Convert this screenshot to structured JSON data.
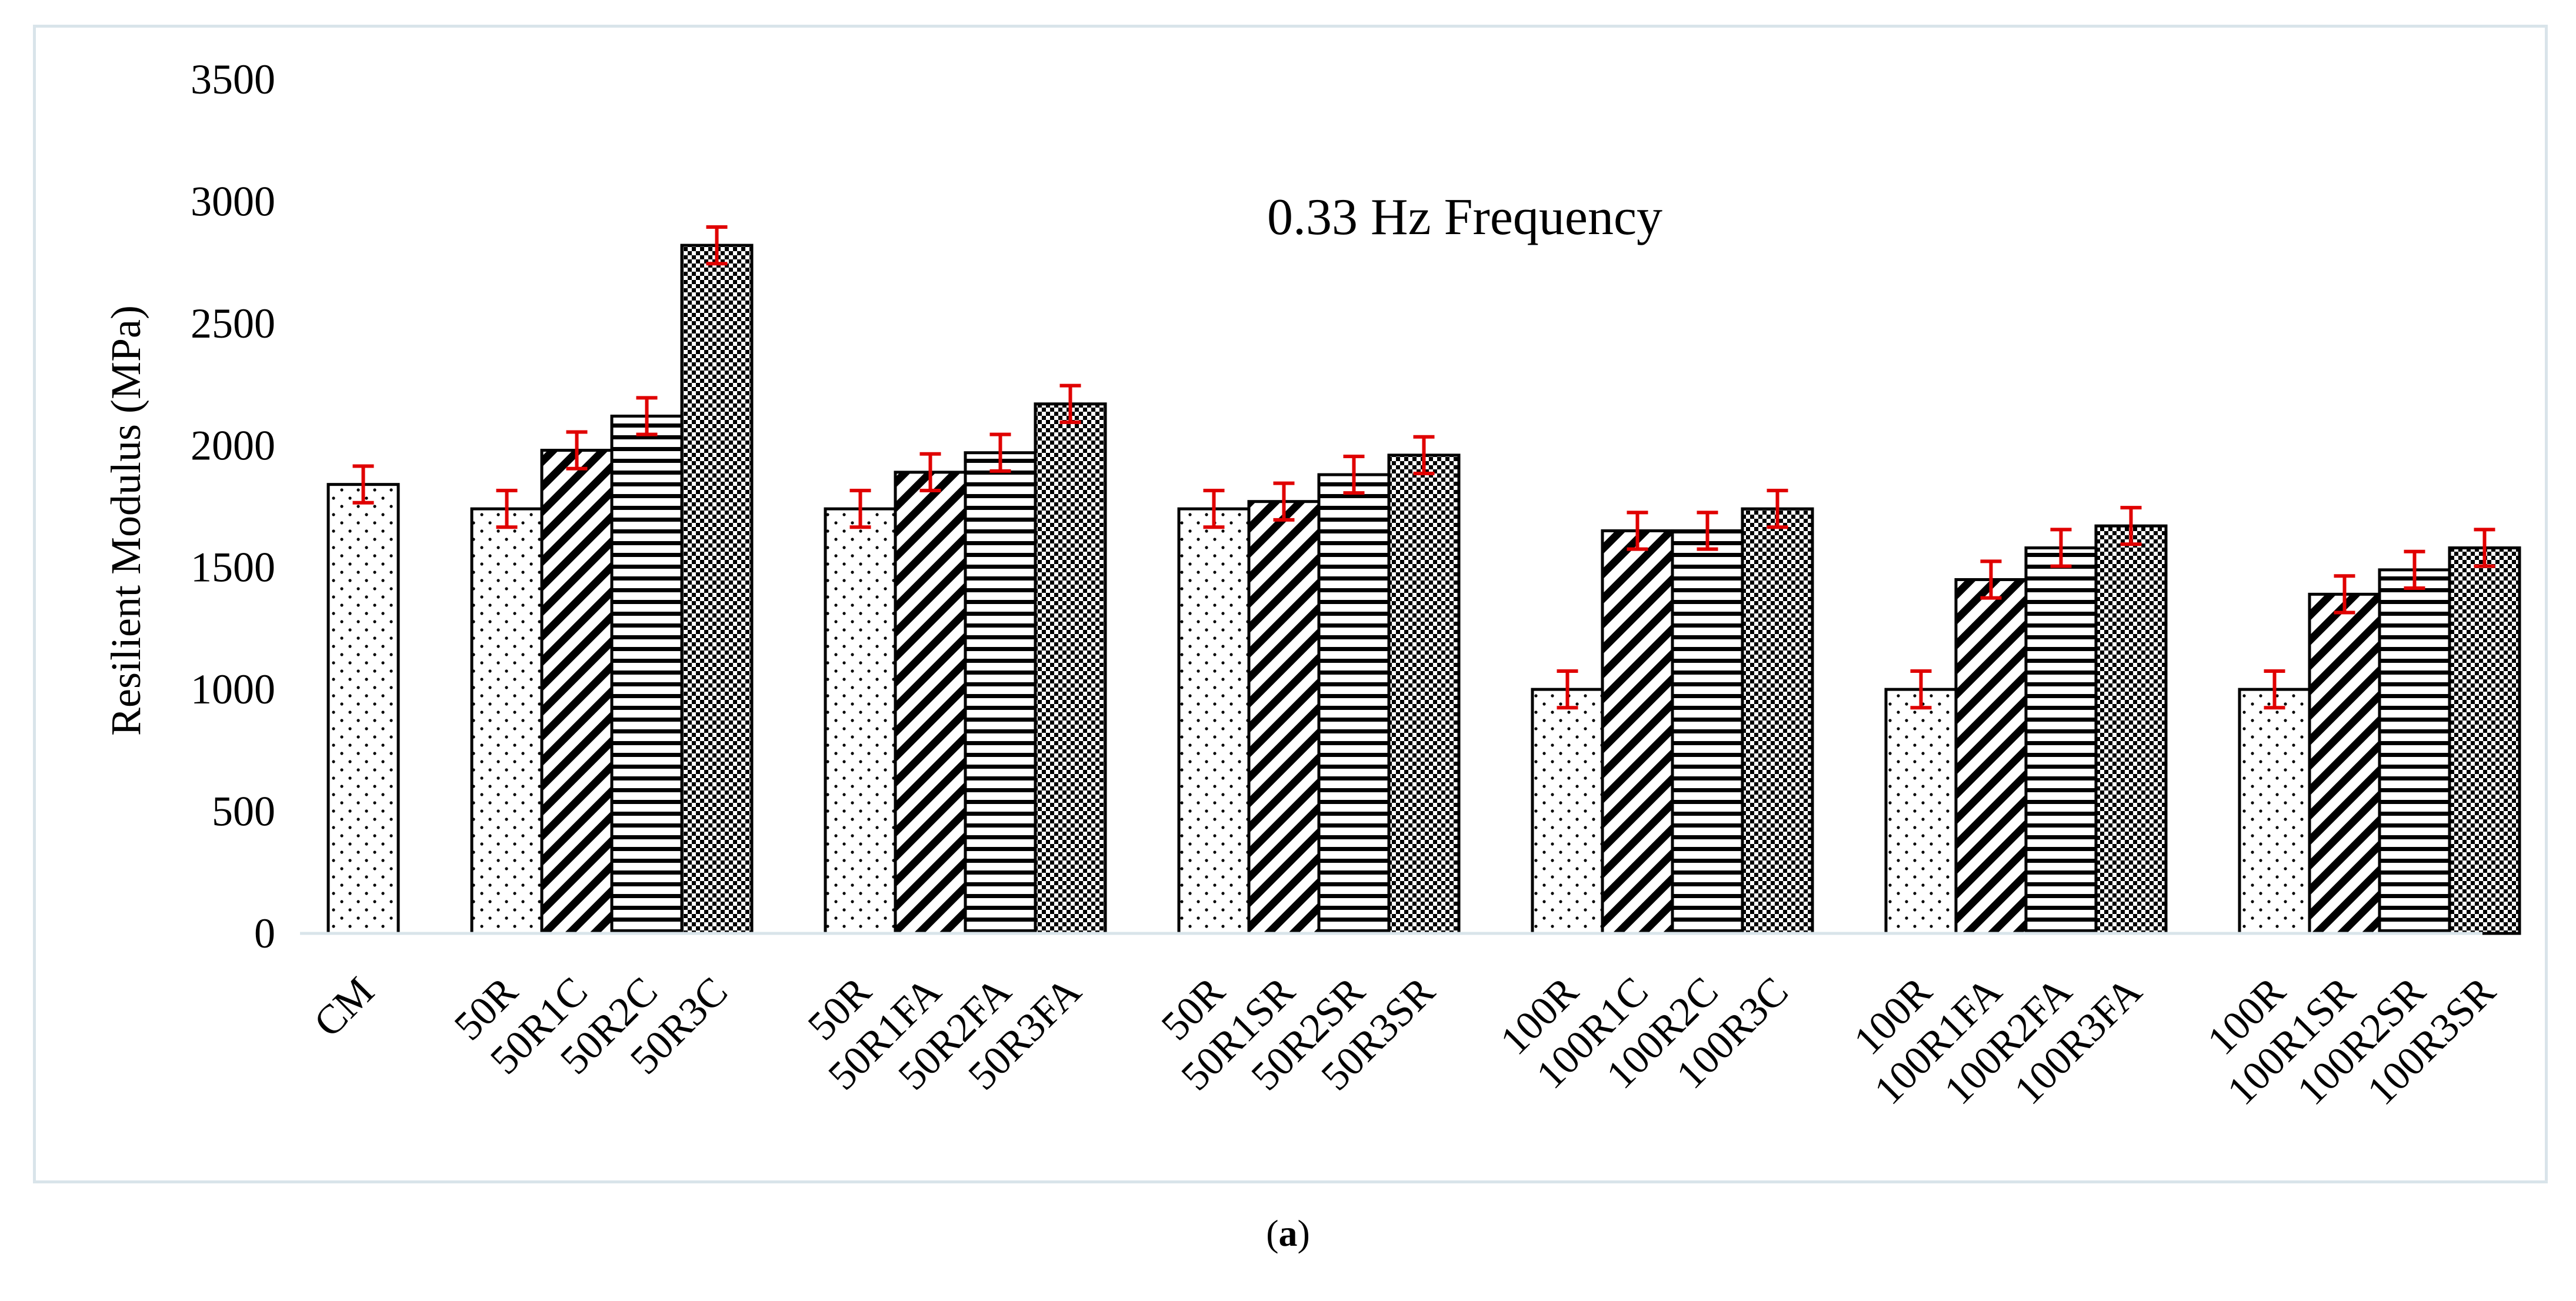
{
  "chart_data": {
    "type": "bar",
    "annotation": "0.33 Hz Frequency",
    "ylabel": "Resilient Modulus (MPa)",
    "xlabel": "",
    "ylim": [
      0,
      3500
    ],
    "yticks": [
      0,
      500,
      1000,
      1500,
      2000,
      2500,
      3000,
      3500
    ],
    "error_bar": 75,
    "groups": [
      {
        "bars": [
          {
            "label": "CM",
            "value": 1840,
            "pattern": "dots"
          }
        ]
      },
      {
        "bars": [
          {
            "label": "50R",
            "value": 1740,
            "pattern": "dots"
          },
          {
            "label": "50R1C",
            "value": 1980,
            "pattern": "diag"
          },
          {
            "label": "50R2C",
            "value": 2120,
            "pattern": "horiz"
          },
          {
            "label": "50R3C",
            "value": 2820,
            "pattern": "check"
          }
        ]
      },
      {
        "bars": [
          {
            "label": "50R",
            "value": 1740,
            "pattern": "dots"
          },
          {
            "label": "50R1FA",
            "value": 1890,
            "pattern": "diag"
          },
          {
            "label": "50R2FA",
            "value": 1970,
            "pattern": "horiz"
          },
          {
            "label": "50R3FA",
            "value": 2170,
            "pattern": "check"
          }
        ]
      },
      {
        "bars": [
          {
            "label": "50R",
            "value": 1740,
            "pattern": "dots"
          },
          {
            "label": "50R1SR",
            "value": 1770,
            "pattern": "diag"
          },
          {
            "label": "50R2SR",
            "value": 1880,
            "pattern": "horiz"
          },
          {
            "label": "50R3SR",
            "value": 1960,
            "pattern": "check"
          }
        ]
      },
      {
        "bars": [
          {
            "label": "100R",
            "value": 1000,
            "pattern": "dots"
          },
          {
            "label": "100R1C",
            "value": 1650,
            "pattern": "diag"
          },
          {
            "label": "100R2C",
            "value": 1650,
            "pattern": "horiz"
          },
          {
            "label": "100R3C",
            "value": 1740,
            "pattern": "check"
          }
        ]
      },
      {
        "bars": [
          {
            "label": "100R",
            "value": 1000,
            "pattern": "dots"
          },
          {
            "label": "100R1FA",
            "value": 1450,
            "pattern": "diag"
          },
          {
            "label": "100R2FA",
            "value": 1580,
            "pattern": "horiz"
          },
          {
            "label": "100R3FA",
            "value": 1670,
            "pattern": "check"
          }
        ]
      },
      {
        "bars": [
          {
            "label": "100R",
            "value": 1000,
            "pattern": "dots"
          },
          {
            "label": "100R1SR",
            "value": 1390,
            "pattern": "diag"
          },
          {
            "label": "100R2SR",
            "value": 1490,
            "pattern": "horiz"
          },
          {
            "label": "100R3SR",
            "value": 1580,
            "pattern": "check"
          }
        ]
      }
    ],
    "colors": {
      "bar_stroke": "#000000",
      "bar_fill": "#ffffff",
      "error_bar": "#e00000",
      "axis": "#d9e4ea"
    }
  },
  "caption": {
    "letter": "a"
  }
}
